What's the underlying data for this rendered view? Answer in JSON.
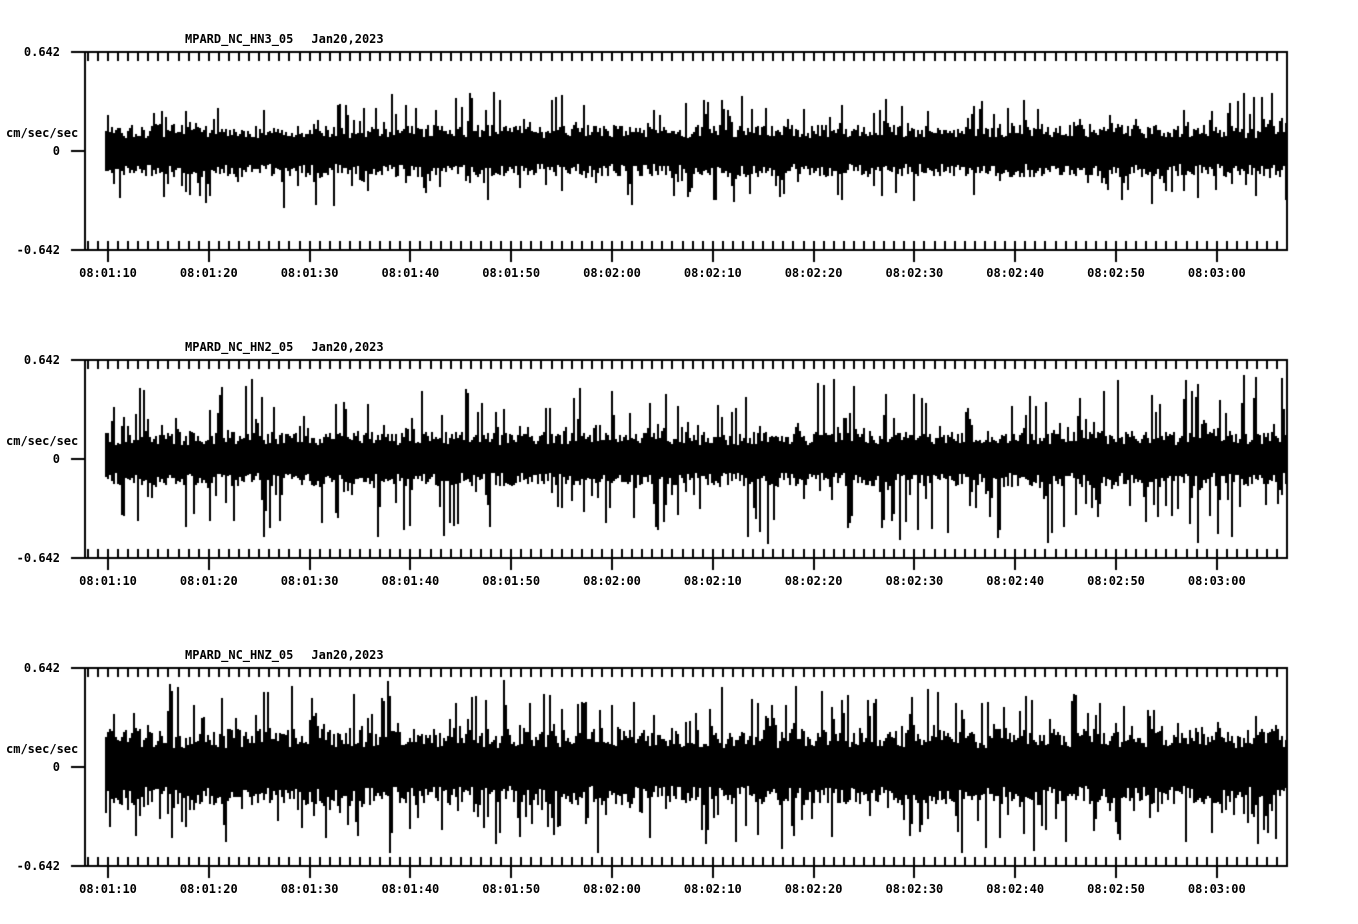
{
  "meta": {
    "viewer": "seismogram-display",
    "ink_color": "#000000",
    "paper_color": "#ffffff"
  },
  "chart_data": [
    {
      "type": "line",
      "subtype": "seismogram-waveform",
      "title": "MPARD_NC_HN3_05  Jan20,2023",
      "station_channel": "MPARD_NC_HN3_05",
      "date": "Jan20,2023",
      "ylabel": "cm/sec/sec",
      "ylim": [
        -0.642,
        0.642
      ],
      "yticks": [
        0.642,
        0,
        -0.642
      ],
      "ytick_labels": [
        "0.642",
        "0",
        "-0.642"
      ],
      "xticks": [
        "08:01:10",
        "08:01:20",
        "08:01:30",
        "08:01:40",
        "08:01:50",
        "08:02:00",
        "08:02:10",
        "08:02:20",
        "08:02:30",
        "08:02:40",
        "08:02:50",
        "08:03:00"
      ],
      "x_start": "08:01:08",
      "x_end": "08:03:07",
      "x_minor_tick_sec": 1,
      "x_major_tick_sec": 10,
      "grid": false,
      "legend": false,
      "series": {
        "name": "HN3 acceleration",
        "description": "continuous zero-mean ground-acceleration noise, no event onset visible",
        "units": "cm/sec/sec",
        "dense_band_amp": 0.17,
        "peak_amp": 0.4,
        "spike_prob": 0.26,
        "seed": 11
      }
    },
    {
      "type": "line",
      "subtype": "seismogram-waveform",
      "title": "MPARD_NC_HN2_05  Jan20,2023",
      "station_channel": "MPARD_NC_HN2_05",
      "date": "Jan20,2023",
      "ylabel": "cm/sec/sec",
      "ylim": [
        -0.642,
        0.642
      ],
      "yticks": [
        0.642,
        0,
        -0.642
      ],
      "ytick_labels": [
        "0.642",
        "0",
        "-0.642"
      ],
      "xticks": [
        "08:01:10",
        "08:01:20",
        "08:01:30",
        "08:01:40",
        "08:01:50",
        "08:02:00",
        "08:02:10",
        "08:02:20",
        "08:02:30",
        "08:02:40",
        "08:02:50",
        "08:03:00"
      ],
      "x_start": "08:01:08",
      "x_end": "08:03:07",
      "x_minor_tick_sec": 1,
      "x_major_tick_sec": 10,
      "grid": false,
      "legend": false,
      "series": {
        "name": "HN2 acceleration",
        "description": "continuous zero-mean ground-acceleration noise with frequent tall thin spikes",
        "units": "cm/sec/sec",
        "dense_band_amp": 0.18,
        "peak_amp": 0.56,
        "spike_prob": 0.28,
        "seed": 22
      }
    },
    {
      "type": "line",
      "subtype": "seismogram-waveform",
      "title": "MPARD_NC_HNZ_05  Jan20,2023",
      "station_channel": "MPARD_NC_HNZ_05",
      "date": "Jan20,2023",
      "ylabel": "cm/sec/sec",
      "ylim": [
        -0.642,
        0.642
      ],
      "yticks": [
        0.642,
        0,
        -0.642
      ],
      "ytick_labels": [
        "0.642",
        "0",
        "-0.642"
      ],
      "xticks": [
        "08:01:10",
        "08:01:20",
        "08:01:30",
        "08:01:40",
        "08:01:50",
        "08:02:00",
        "08:02:10",
        "08:02:20",
        "08:02:30",
        "08:02:40",
        "08:02:50",
        "08:03:00"
      ],
      "x_start": "08:01:08",
      "x_end": "08:03:07",
      "x_minor_tick_sec": 1,
      "x_major_tick_sec": 10,
      "grid": false,
      "legend": false,
      "series": {
        "name": "HNZ acceleration",
        "description": "continuous zero-mean ground-acceleration noise, widest dense band of the three traces",
        "units": "cm/sec/sec",
        "dense_band_amp": 0.25,
        "peak_amp": 0.57,
        "spike_prob": 0.32,
        "seed": 33
      }
    }
  ]
}
